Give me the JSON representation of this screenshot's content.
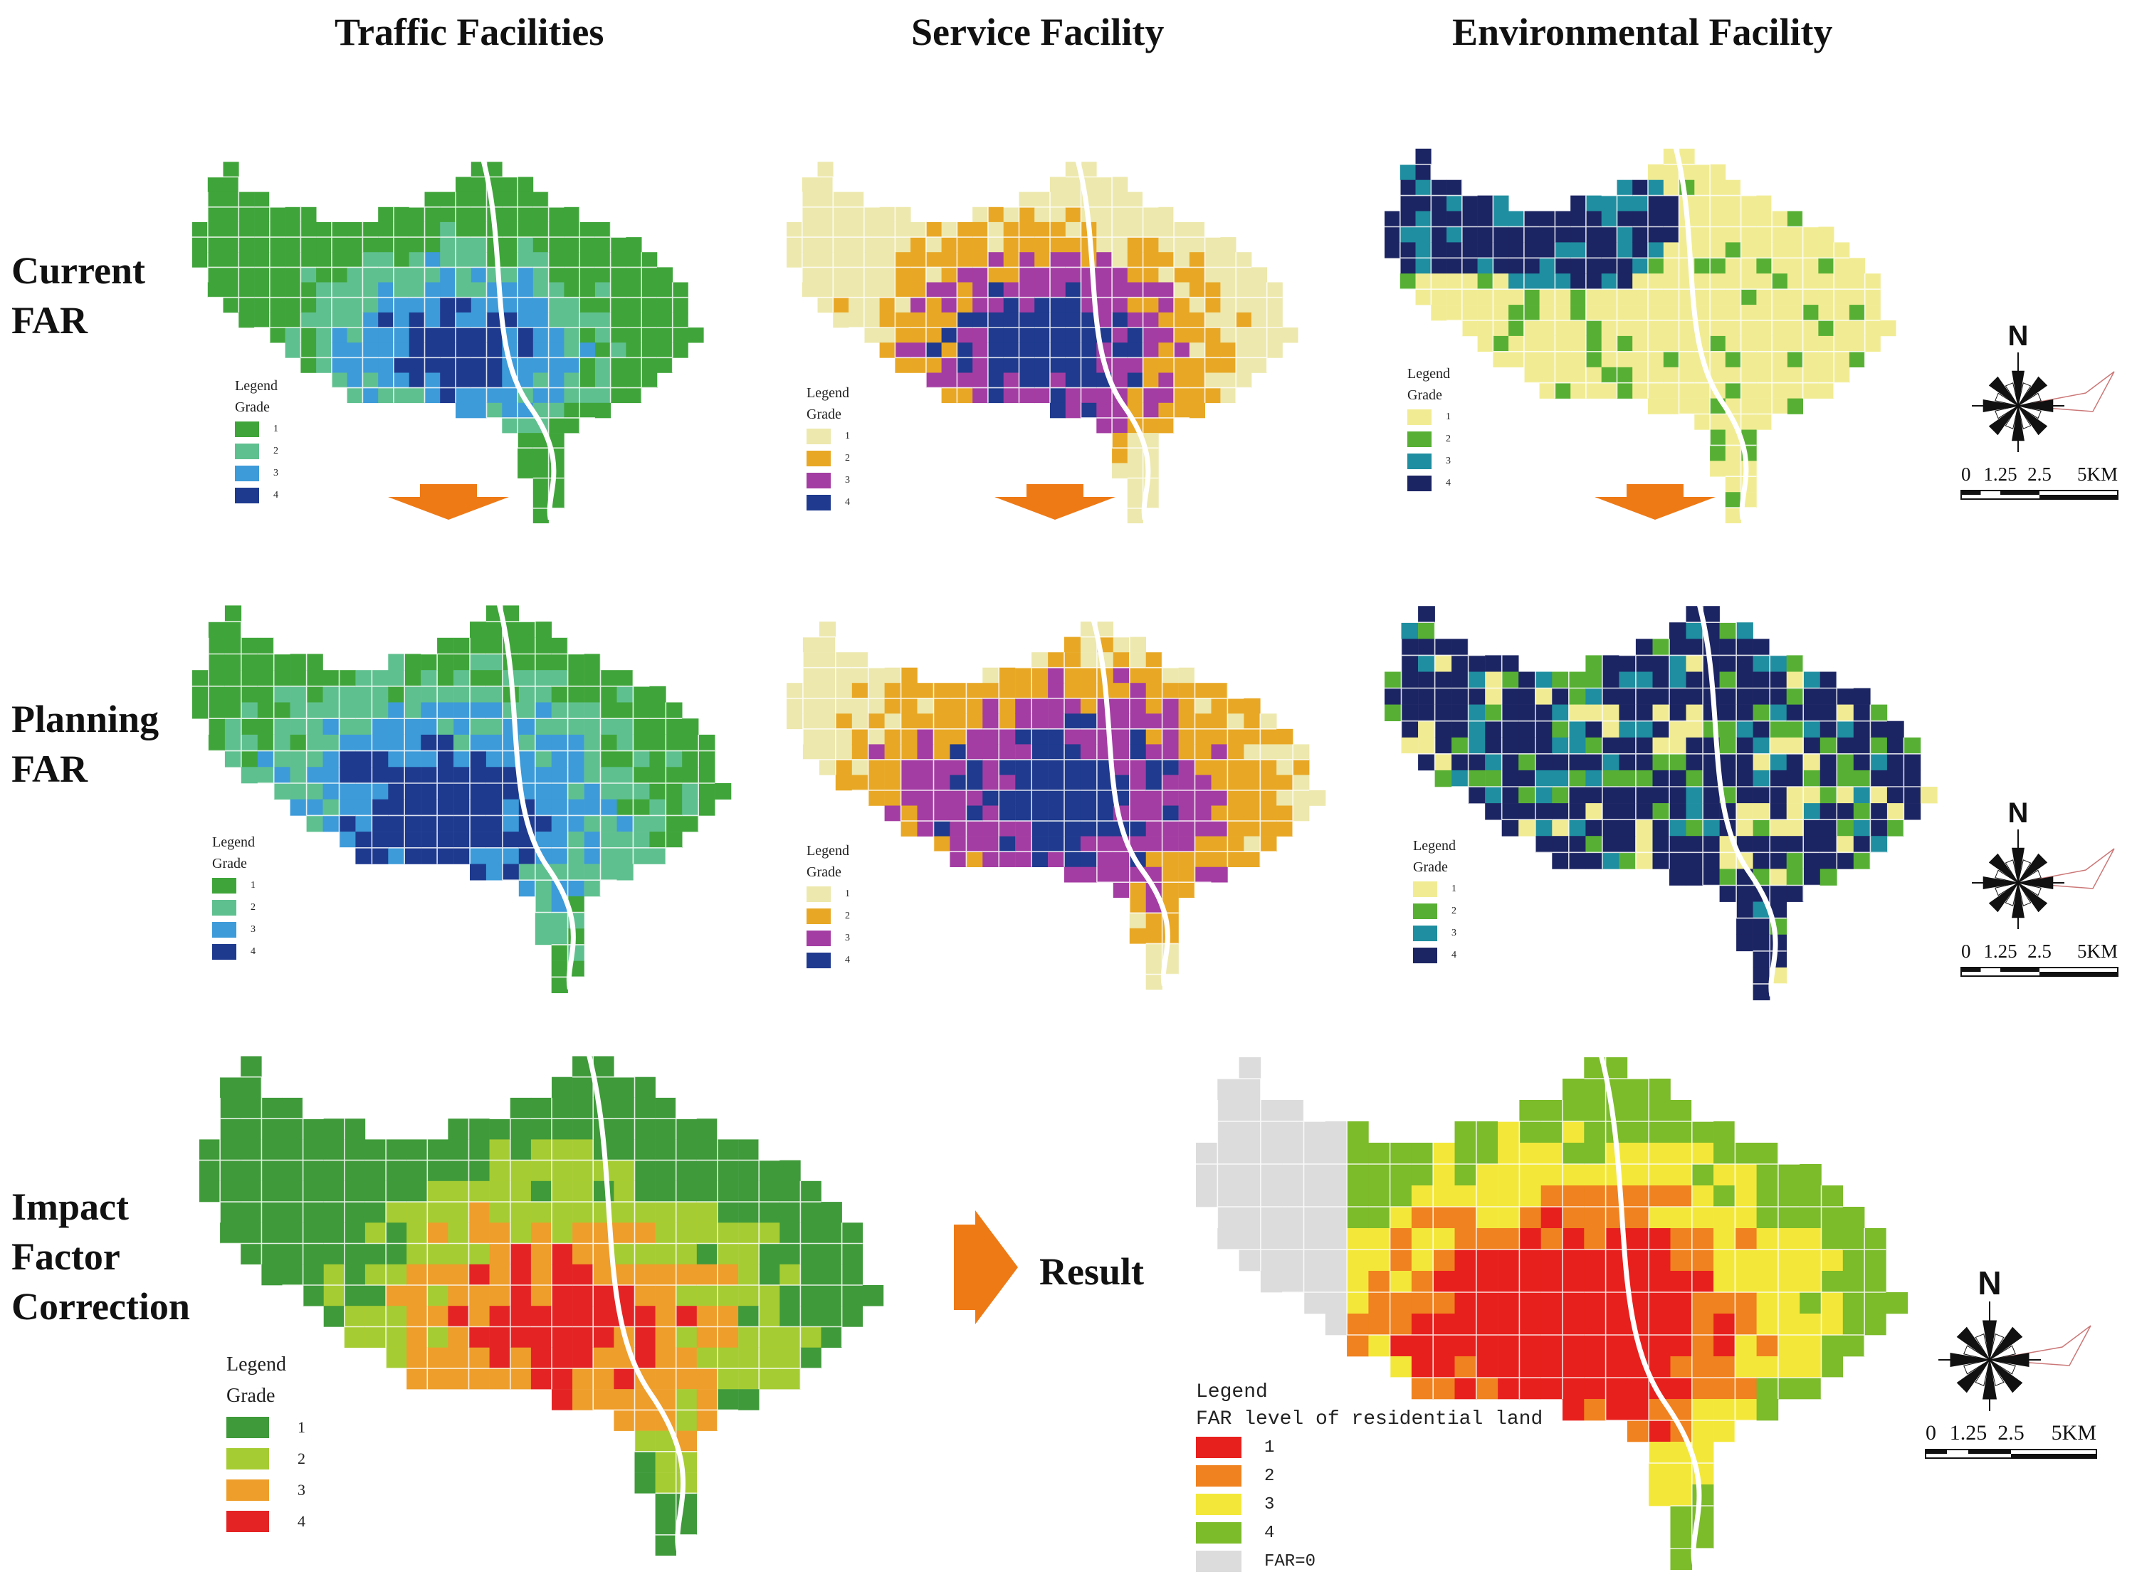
{
  "headers": {
    "traffic": "Traffic Facilities",
    "service": "Service Facility",
    "environmental": "Environmental Facility"
  },
  "rows": {
    "current_1": "Current",
    "current_2": "FAR",
    "planning_1": "Planning",
    "planning_2": "FAR",
    "impact_1": "Impact",
    "impact_2": "Factor",
    "impact_3": "Correction"
  },
  "result_label": "Result",
  "legend": {
    "title": "Legend",
    "subtitle": "Grade",
    "grades": [
      "1",
      "2",
      "3",
      "4"
    ],
    "result_subtitle": "FAR level of residential land",
    "result_levels": [
      "1",
      "2",
      "3",
      "4",
      "FAR=0"
    ]
  },
  "scale": {
    "north": "N",
    "t0": "0",
    "t1": "1.25",
    "t2": "2.5",
    "t3": "5KM"
  },
  "palettes": {
    "traffic": [
      "#3fa53a",
      "#5fc08f",
      "#3d9bd9",
      "#1e3a8f"
    ],
    "service": [
      "#ede8ad",
      "#e8a825",
      "#a43da3",
      "#1f3a8e"
    ],
    "environmental": [
      "#f1ec94",
      "#57b034",
      "#1f8ea0",
      "#1c2563"
    ],
    "impact": [
      "#3f9a3a",
      "#a6cc33",
      "#ee9e2b",
      "#e42424"
    ],
    "result": [
      "#e8201d",
      "#f0821f",
      "#f3e83a",
      "#7cbb2a",
      "#dcdcdc"
    ]
  },
  "arrow_color": "#ee7a16"
}
